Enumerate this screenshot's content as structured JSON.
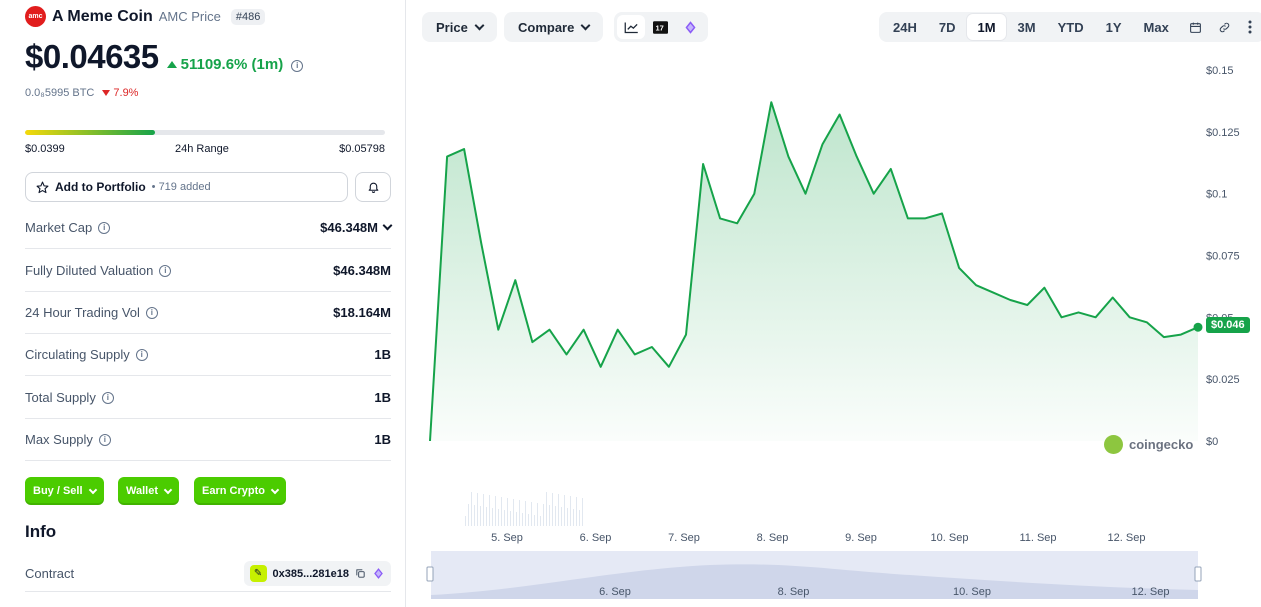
{
  "coin": {
    "logo_text": "amc",
    "name": "A Meme Coin",
    "subtitle": "AMC Price",
    "rank": "#486",
    "price": "$0.04635",
    "change": "51109.6% (1m)",
    "btc_price": "0.0₈5995 BTC",
    "btc_change": "7.9%"
  },
  "range_24h": {
    "low": "$0.0399",
    "label": "24h Range",
    "high": "$0.05798",
    "fill_fraction": 0.36
  },
  "portfolio": {
    "label": "Add to Portfolio",
    "added": "• 719 added"
  },
  "stats": [
    {
      "label": "Market Cap",
      "value": "$46.348M"
    },
    {
      "label": "Fully Diluted Valuation",
      "value": "$46.348M"
    },
    {
      "label": "24 Hour Trading Vol",
      "value": "$18.164M"
    },
    {
      "label": "Circulating Supply",
      "value": "1B"
    },
    {
      "label": "Total Supply",
      "value": "1B"
    },
    {
      "label": "Max Supply",
      "value": "1B"
    }
  ],
  "actions": {
    "buy_sell": "Buy / Sell",
    "wallet": "Wallet",
    "earn": "Earn Crypto"
  },
  "info": {
    "title": "Info",
    "contract_label": "Contract",
    "contract_value": "0x385...281e18"
  },
  "toolbar": {
    "price_label": "Price",
    "compare_label": "Compare",
    "ranges": [
      "24H",
      "7D",
      "1M",
      "3M",
      "YTD",
      "1Y",
      "Max"
    ],
    "active_range": "1M"
  },
  "chart": {
    "watermark": "coingecko",
    "current_tag": "$0.046",
    "line_color": "#16a34a",
    "y_ticks": [
      "$0.15",
      "$0.125",
      "$0.1",
      "$0.075",
      "$0.05",
      "$0.025",
      "$0"
    ],
    "x_ticks": [
      "5. Sep",
      "6. Sep",
      "7. Sep",
      "8. Sep",
      "9. Sep",
      "10. Sep",
      "11. Sep",
      "12. Sep"
    ],
    "nav_ticks": [
      "6. Sep",
      "8. Sep",
      "10. Sep",
      "12. Sep"
    ]
  },
  "chart_data": {
    "type": "area",
    "title": "",
    "xlabel": "",
    "ylabel": "",
    "ylim": [
      0,
      0.15
    ],
    "x": [
      "4.6 Sep",
      "4.8 Sep",
      "4.9 Sep",
      "5.0 Sep",
      "5.2 Sep",
      "5.4 Sep",
      "5.6 Sep",
      "5.8 Sep",
      "6.0 Sep",
      "6.2 Sep",
      "6.4 Sep",
      "6.6 Sep",
      "6.8 Sep",
      "6.9 Sep",
      "7.0 Sep",
      "7.1 Sep",
      "7.3 Sep",
      "7.5 Sep",
      "7.6 Sep",
      "7.7 Sep",
      "7.9 Sep",
      "8.1 Sep",
      "8.2 Sep",
      "8.3 Sep",
      "8.5 Sep",
      "8.7 Sep",
      "8.9 Sep",
      "9.1 Sep",
      "9.3 Sep",
      "9.5 Sep",
      "9.7 Sep",
      "9.9 Sep",
      "10.1 Sep",
      "10.3 Sep",
      "10.5 Sep",
      "10.7 Sep",
      "10.9 Sep",
      "11.1 Sep",
      "11.3 Sep",
      "11.5 Sep",
      "11.7 Sep",
      "11.9 Sep",
      "12.1 Sep",
      "12.3 Sep",
      "12.5 Sep",
      "12.7 Sep"
    ],
    "series": [
      {
        "values": [
          0.0,
          0.115,
          0.118,
          0.08,
          0.045,
          0.065,
          0.04,
          0.045,
          0.035,
          0.045,
          0.03,
          0.045,
          0.035,
          0.038,
          0.03,
          0.043,
          0.112,
          0.09,
          0.088,
          0.1,
          0.137,
          0.115,
          0.1,
          0.12,
          0.132,
          0.115,
          0.1,
          0.11,
          0.09,
          0.09,
          0.092,
          0.07,
          0.063,
          0.06,
          0.057,
          0.055,
          0.062,
          0.05,
          0.052,
          0.05,
          0.058,
          0.05,
          0.048,
          0.042,
          0.043,
          0.046
        ]
      }
    ],
    "grid": false,
    "legend": "none"
  }
}
